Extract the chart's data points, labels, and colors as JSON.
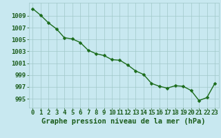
{
  "x": [
    0,
    1,
    2,
    3,
    4,
    5,
    6,
    7,
    8,
    9,
    10,
    11,
    12,
    13,
    14,
    15,
    16,
    17,
    18,
    19,
    20,
    21,
    22,
    23
  ],
  "y": [
    1010.2,
    1009.1,
    1007.8,
    1006.8,
    1005.3,
    1005.1,
    1004.5,
    1003.2,
    1002.6,
    1002.3,
    1001.6,
    1001.5,
    1000.7,
    999.7,
    999.1,
    997.6,
    997.1,
    996.8,
    997.2,
    997.1,
    996.4,
    994.7,
    995.2,
    997.6
  ],
  "line_color": "#1a6b1a",
  "marker_color": "#1a6b1a",
  "bg_color": "#c8e8f0",
  "grid_color": "#a0c8c8",
  "ylabel_ticks": [
    995,
    997,
    999,
    1001,
    1003,
    1005,
    1007,
    1009
  ],
  "ylim": [
    993.5,
    1011.2
  ],
  "xlim": [
    -0.5,
    23.5
  ],
  "xlabel": "Graphe pression niveau de la mer (hPa)",
  "title_color": "#1a5c1a",
  "xlabel_color": "#1a5c1a",
  "xlabel_fontsize": 7.5,
  "tick_fontsize": 6.5,
  "marker_size": 2.5,
  "line_width": 1.0
}
